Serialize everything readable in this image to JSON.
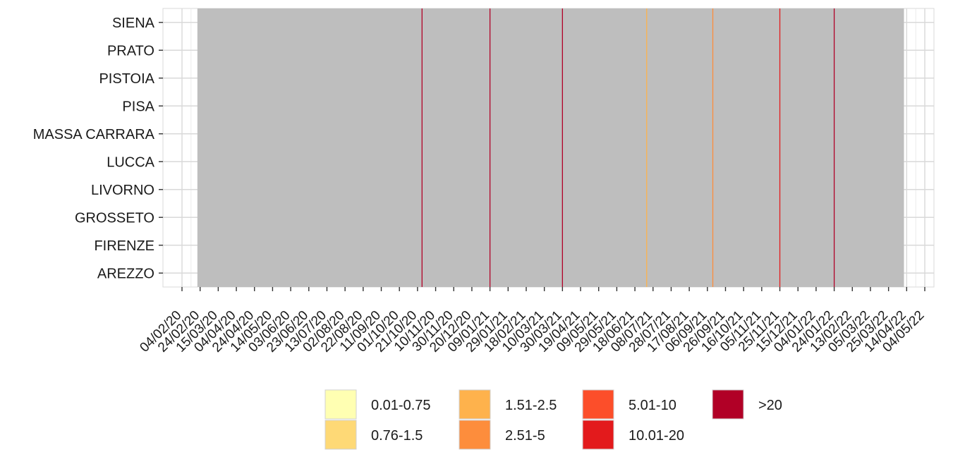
{
  "chart_data": {
    "type": "heatmap",
    "title": "",
    "xlabel": "",
    "ylabel": "",
    "rows": [
      "SIENA",
      "PRATO",
      "PISTOIA",
      "PISA",
      "MASSA CARRARA",
      "LUCCA",
      "LIVORNO",
      "GROSSETO",
      "FIRENZE",
      "AREZZO"
    ],
    "x_ticks": [
      "04/02/20",
      "24/02/20",
      "15/03/20",
      "04/04/20",
      "24/04/20",
      "14/05/20",
      "03/06/20",
      "23/06/20",
      "13/07/20",
      "02/08/20",
      "22/08/20",
      "11/09/20",
      "01/10/20",
      "21/10/20",
      "10/11/20",
      "30/11/20",
      "20/12/20",
      "09/01/21",
      "29/01/21",
      "18/02/21",
      "10/03/21",
      "30/03/21",
      "19/04/21",
      "09/05/21",
      "29/05/21",
      "18/06/21",
      "08/07/21",
      "28/07/21",
      "17/08/21",
      "06/09/21",
      "26/09/21",
      "16/10/21",
      "05/11/21",
      "25/11/21",
      "15/12/21",
      "04/01/22",
      "24/01/22",
      "13/02/22",
      "05/03/22",
      "25/03/22",
      "14/04/22",
      "04/05/22"
    ],
    "x_range": [
      "04/02/20",
      "04/05/22"
    ],
    "cell_color_default": "#bebebe",
    "legend": {
      "position": "bottom",
      "items": [
        {
          "label": "0.01-0.75",
          "color": "#ffffb2"
        },
        {
          "label": "0.76-1.5",
          "color": "#fed976"
        },
        {
          "label": "1.51-2.5",
          "color": "#feb24c"
        },
        {
          "label": "2.51-5",
          "color": "#fd8d3c"
        },
        {
          "label": "5.01-10",
          "color": "#fc4e2a"
        },
        {
          "label": "10.01-20",
          "color": "#e31a1c"
        },
        {
          "label": ">20",
          "color": "#b10026"
        }
      ]
    },
    "data_span": {
      "start": "21/02/20",
      "end": "11/04/22"
    },
    "highlight_dates": [
      {
        "date": "26/10/20",
        "class": ">20"
      },
      {
        "date": "09/01/21",
        "class": ">20"
      },
      {
        "date": "30/03/21",
        "class": ">20"
      },
      {
        "date": "01/07/21",
        "class": "1.51-2.5"
      },
      {
        "date": "12/09/21",
        "class": "2.51-5"
      },
      {
        "date": "25/11/21",
        "class": "10.01-20"
      },
      {
        "date": "24/01/22",
        "class": ">20"
      }
    ],
    "grid": true
  }
}
